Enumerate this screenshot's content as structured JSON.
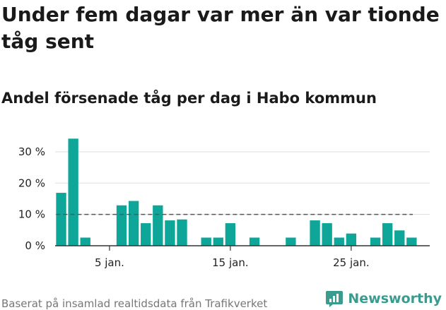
{
  "header": {
    "title": "Under fem dagar var mer än var tionde tåg sent",
    "subtitle": "Andel försenade tåg per dag i Habo kommun"
  },
  "footer": {
    "source": "Baserat på insamlad realtidsdata från Trafikverket",
    "brand": "Newsworthy"
  },
  "colors": {
    "bar": "#0fa69a",
    "grid": "#dddddd",
    "reference": "#555555",
    "brand": "#3a9c8f"
  },
  "chart_data": {
    "type": "bar",
    "x": [
      1,
      2,
      3,
      4,
      5,
      6,
      7,
      8,
      9,
      10,
      11,
      12,
      13,
      14,
      15,
      16,
      17,
      18,
      19,
      20,
      21,
      22,
      23,
      24,
      25,
      26,
      27,
      28,
      29,
      30
    ],
    "values": [
      16.9,
      34.2,
      2.6,
      0,
      0,
      12.9,
      14.3,
      7.2,
      12.9,
      8.1,
      8.4,
      0,
      2.6,
      2.6,
      7.2,
      0,
      2.6,
      0,
      0,
      2.6,
      0,
      8.1,
      7.2,
      2.6,
      3.9,
      0,
      2.6,
      7.2,
      4.9,
      2.6
    ],
    "x_ticks": [
      {
        "value": 5,
        "label": "5 jan."
      },
      {
        "value": 15,
        "label": "15 jan."
      },
      {
        "value": 25,
        "label": "25 jan."
      }
    ],
    "y_ticks": [
      {
        "value": 0,
        "label": "0 %"
      },
      {
        "value": 10,
        "label": "10 %"
      },
      {
        "value": 20,
        "label": "20 %"
      },
      {
        "value": 30,
        "label": "30 %"
      }
    ],
    "reference_line": {
      "value": 10,
      "style": "dashed"
    },
    "ylim": [
      0,
      34.5
    ],
    "xlim": [
      0.5,
      31.5
    ],
    "grid": true,
    "xlabel": "",
    "ylabel": ""
  }
}
